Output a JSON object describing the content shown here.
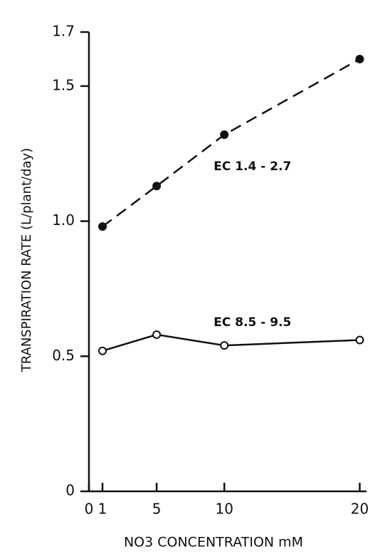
{
  "chart_data": {
    "type": "line",
    "y_label": "TRANSPIRATION RATE (L/plant/day)",
    "x_label": "NO3 CONCENTRATION mM",
    "x": [
      1,
      5,
      10,
      20
    ],
    "series": [
      {
        "name": "EC 1.4 - 2.7",
        "color": "#111111",
        "dashed": true,
        "marker": "filled",
        "values": [
          0.98,
          1.13,
          1.32,
          1.6
        ]
      },
      {
        "name": "EC 8.5 - 9.5",
        "color": "#111111",
        "dashed": false,
        "marker": "open",
        "values": [
          0.52,
          0.58,
          0.54,
          0.56
        ]
      }
    ],
    "xlim": [
      0,
      20.5
    ],
    "xticks": [
      0,
      1,
      5,
      10,
      20
    ],
    "ylim": [
      0,
      1.7
    ],
    "yticks": [
      0,
      0.5,
      {
        "value": 1,
        "label": "1.0"
      },
      1.5,
      1.7
    ]
  }
}
